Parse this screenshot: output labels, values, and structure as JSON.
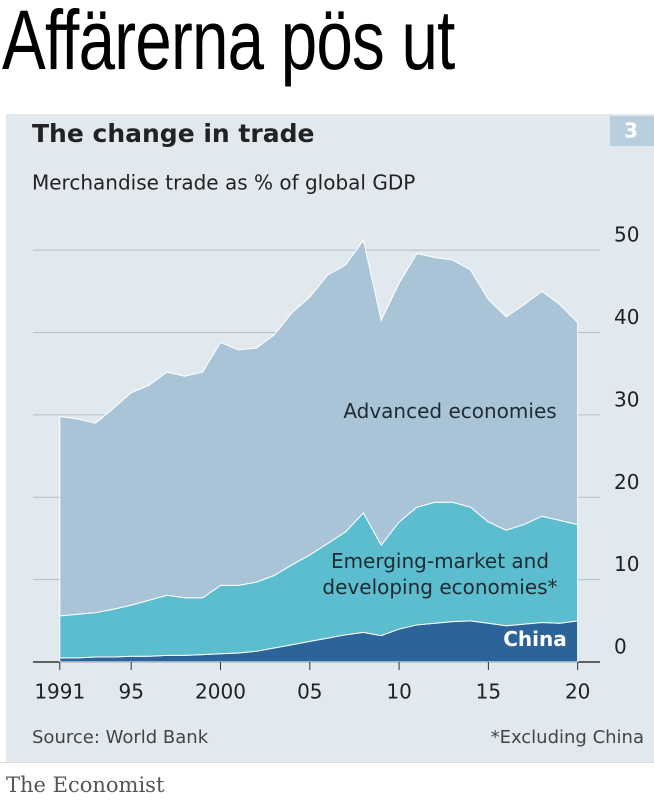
{
  "heading": "Affärerna pös ut",
  "chart_data": {
    "type": "stacked-area",
    "number": "3",
    "title": "The change in trade",
    "subtitle": "Merchandise trade as % of global GDP",
    "source": "Source: World Bank",
    "note": "*Excluding China",
    "x": [
      1991,
      1992,
      1993,
      1994,
      1995,
      1996,
      1997,
      1998,
      1999,
      2000,
      2001,
      2002,
      2003,
      2004,
      2005,
      2006,
      2007,
      2008,
      2009,
      2010,
      2011,
      2012,
      2013,
      2014,
      2015,
      2016,
      2017,
      2018,
      2019,
      2020
    ],
    "series": [
      {
        "name": "China",
        "color": "#2c6398",
        "values": [
          0.5,
          0.5,
          0.6,
          0.6,
          0.7,
          0.7,
          0.8,
          0.8,
          0.9,
          1.0,
          1.1,
          1.3,
          1.7,
          2.1,
          2.5,
          2.9,
          3.3,
          3.6,
          3.2,
          4.0,
          4.5,
          4.7,
          4.9,
          5.0,
          4.7,
          4.4,
          4.6,
          4.8,
          4.7,
          5.0
        ]
      },
      {
        "name": "Emerging-market and developing economies*",
        "color": "#5bbdcd",
        "values": [
          5.1,
          5.3,
          5.4,
          5.8,
          6.2,
          6.8,
          7.3,
          7.0,
          6.9,
          8.3,
          8.2,
          8.4,
          8.8,
          9.7,
          10.5,
          11.5,
          12.5,
          14.5,
          11.0,
          13.0,
          14.3,
          14.7,
          14.5,
          13.8,
          12.3,
          11.6,
          12.1,
          12.9,
          12.5,
          11.7
        ]
      },
      {
        "name": "Advanced economies",
        "color": "#a9c4d7",
        "values": [
          24.2,
          23.7,
          23.0,
          24.4,
          25.8,
          26.1,
          27.1,
          26.9,
          27.4,
          29.5,
          28.6,
          28.4,
          29.2,
          30.6,
          31.3,
          32.6,
          32.4,
          33.1,
          27.3,
          29.0,
          30.8,
          29.7,
          29.4,
          28.8,
          27.0,
          25.9,
          26.7,
          27.3,
          26.2,
          24.5
        ]
      }
    ],
    "xlim": [
      1989.5,
      2021.25
    ],
    "xticks": [
      1991,
      {
        "value": 1995,
        "label": "95"
      },
      2000,
      {
        "value": 2005,
        "label": "05"
      },
      {
        "value": 2010,
        "label": "10"
      },
      {
        "value": 2015,
        "label": "15"
      },
      {
        "value": 2020,
        "label": "20"
      }
    ],
    "ylim": [
      0,
      55
    ],
    "yticks": [
      0,
      10,
      20,
      30,
      40,
      50
    ],
    "grid": true
  },
  "footer": {
    "brand": "The Economist"
  }
}
